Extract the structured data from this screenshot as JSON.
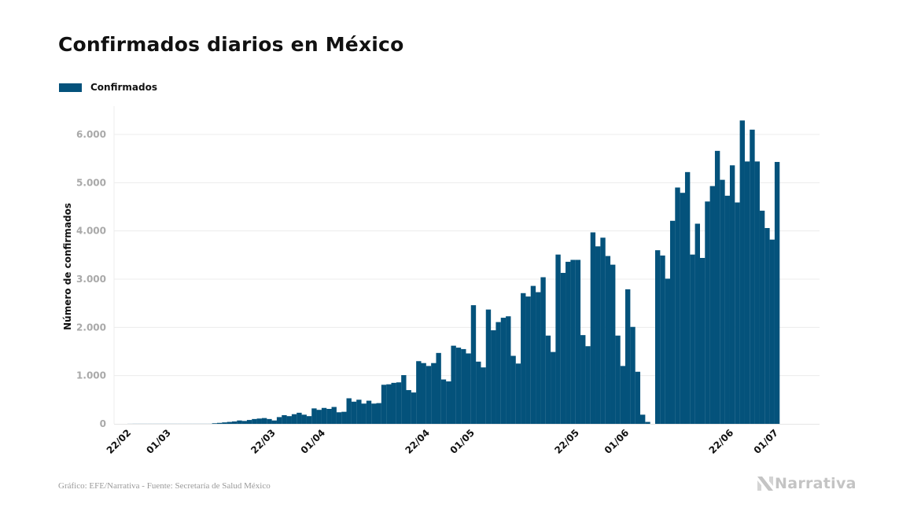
{
  "header": {
    "title": "Confirmados diarios en México"
  },
  "legend": {
    "label": "Confirmados",
    "color": "#04527b"
  },
  "footer": {
    "source": "Gráfico: EFE/Narrativa - Fuente: Secretaría de Salud México",
    "brand": "Narrativa",
    "brand_icon": "narrativa-logo-icon"
  },
  "chart_data": {
    "type": "bar",
    "title": "Confirmados diarios en México",
    "xlabel": "",
    "ylabel": "Número de confirmados",
    "ylim": [
      0,
      6600
    ],
    "yticks": [
      0,
      1000,
      2000,
      3000,
      4000,
      5000,
      6000
    ],
    "ytick_labels": [
      "0",
      "1.000",
      "2.000",
      "3.000",
      "4.000",
      "5.000",
      "6.000"
    ],
    "grid": true,
    "legend_position": "top-left",
    "color": "#04527b",
    "start_date": "22/02",
    "xtick_labels": [
      {
        "label": "22/02",
        "day": 0
      },
      {
        "label": "01/03",
        "day": 8
      },
      {
        "label": "22/03",
        "day": 29
      },
      {
        "label": "01/04",
        "day": 39
      },
      {
        "label": "22/04",
        "day": 60
      },
      {
        "label": "01/05",
        "day": 69
      },
      {
        "label": "22/05",
        "day": 90
      },
      {
        "label": "01/06",
        "day": 100
      },
      {
        "label": "22/06",
        "day": 121
      },
      {
        "label": "01/07",
        "day": 130
      }
    ],
    "series": [
      {
        "name": "Confirmados",
        "values": [
          0,
          1,
          1,
          1,
          2,
          1,
          2,
          1,
          2,
          3,
          2,
          3,
          2,
          4,
          5,
          6,
          8,
          12,
          20,
          30,
          40,
          50,
          70,
          60,
          80,
          100,
          110,
          120,
          100,
          70,
          140,
          180,
          160,
          200,
          230,
          190,
          160,
          320,
          290,
          330,
          310,
          350,
          240,
          250,
          530,
          460,
          500,
          420,
          480,
          420,
          430,
          810,
          820,
          850,
          860,
          1010,
          700,
          650,
          1300,
          1260,
          1200,
          1260,
          1470,
          920,
          880,
          1620,
          1580,
          1550,
          1460,
          2460,
          1290,
          1170,
          2370,
          1940,
          2110,
          2200,
          2230,
          1410,
          1250,
          2710,
          2640,
          2860,
          2730,
          3040,
          1830,
          1490,
          3510,
          3130,
          3360,
          3400,
          3400,
          1840,
          1610,
          3970,
          3680,
          3860,
          3480,
          3300,
          1830,
          1200,
          2790,
          2010,
          1080,
          190,
          40,
          null,
          3600,
          3490,
          3010,
          4210,
          4900,
          4790,
          5220,
          3510,
          4150,
          3440,
          4610,
          4930,
          5660,
          5060,
          4730,
          5360,
          4590,
          6290,
          5440,
          6100,
          5440,
          4420,
          4060,
          3820,
          5430
        ]
      }
    ]
  }
}
